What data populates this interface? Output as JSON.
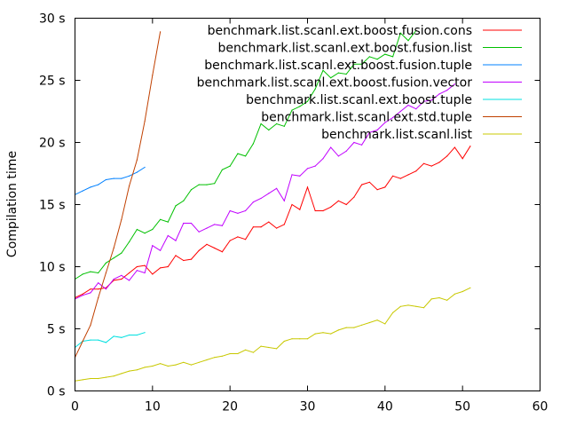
{
  "chart_data": {
    "type": "line",
    "ylabel": "Compilation time",
    "xlim": [
      0,
      60
    ],
    "ylim": [
      0,
      30
    ],
    "xticks": [
      0,
      10,
      20,
      30,
      40,
      50,
      60
    ],
    "yticks": [
      0,
      5,
      10,
      15,
      20,
      25,
      30
    ],
    "ytick_labels": [
      "0 s",
      "5 s",
      "10 s",
      "15 s",
      "20 s",
      "25 s",
      "30 s"
    ],
    "grid": false,
    "legend_position": "top-right",
    "series": [
      {
        "name": "benchmark.list.scanl.ext.boost.fusion.cons",
        "color": "#ff0000",
        "x": [
          0,
          1,
          2,
          3,
          4,
          5,
          6,
          7,
          8,
          9,
          10,
          11,
          12,
          13,
          14,
          15,
          16,
          17,
          18,
          19,
          20,
          21,
          22,
          23,
          24,
          25,
          26,
          27,
          28,
          29,
          30,
          31,
          32,
          33,
          34,
          35,
          36,
          37,
          38,
          39,
          40,
          41,
          42,
          43,
          44,
          45,
          46,
          47,
          48,
          49,
          50,
          51
        ],
        "y": [
          7.5,
          7.8,
          8.2,
          8.2,
          8.3,
          8.9,
          9.0,
          9.5,
          10.0,
          10.1,
          9.4,
          9.9,
          10.0,
          10.9,
          10.5,
          10.6,
          11.3,
          11.8,
          11.5,
          11.2,
          12.1,
          12.4,
          12.2,
          13.2,
          13.2,
          13.6,
          13.1,
          13.4,
          15.0,
          14.6,
          16.4,
          14.5,
          14.5,
          14.8,
          15.3,
          15.0,
          15.6,
          16.6,
          16.8,
          16.2,
          16.4,
          17.3,
          17.1,
          17.4,
          17.7,
          18.3,
          18.1,
          18.4,
          18.9,
          19.6,
          18.7,
          19.7
        ]
      },
      {
        "name": "benchmark.list.scanl.ext.boost.fusion.list",
        "color": "#00c000",
        "x": [
          0,
          1,
          2,
          3,
          4,
          5,
          6,
          7,
          8,
          9,
          10,
          11,
          12,
          13,
          14,
          15,
          16,
          17,
          18,
          19,
          20,
          21,
          22,
          23,
          24,
          25,
          26,
          27,
          28,
          29,
          30,
          31,
          32,
          33,
          34,
          35,
          36,
          37,
          38,
          39,
          40,
          41,
          42,
          43,
          44
        ],
        "y": [
          9.0,
          9.4,
          9.6,
          9.5,
          10.3,
          10.7,
          11.1,
          12.0,
          13.0,
          12.7,
          13.0,
          13.8,
          13.6,
          14.9,
          15.3,
          16.2,
          16.6,
          16.6,
          16.7,
          17.8,
          18.1,
          19.1,
          18.9,
          19.9,
          21.5,
          21.0,
          21.5,
          21.3,
          22.6,
          22.9,
          23.3,
          24.3,
          25.8,
          25.2,
          25.6,
          25.5,
          26.3,
          26.3,
          26.9,
          26.7,
          27.1,
          26.9,
          28.8,
          28.2,
          29.0
        ]
      },
      {
        "name": "benchmark.list.scanl.ext.boost.fusion.tuple",
        "color": "#0080ff",
        "x": [
          0,
          1,
          2,
          3,
          4,
          5,
          6,
          7,
          8,
          9
        ],
        "y": [
          15.8,
          16.1,
          16.4,
          16.6,
          17.0,
          17.1,
          17.1,
          17.3,
          17.6,
          18.0
        ]
      },
      {
        "name": "benchmark.list.scanl.ext.boost.fusion.vector",
        "color": "#c000ff",
        "x": [
          0,
          1,
          2,
          3,
          4,
          5,
          6,
          7,
          8,
          9,
          10,
          11,
          12,
          13,
          14,
          15,
          16,
          17,
          18,
          19,
          20,
          21,
          22,
          23,
          24,
          25,
          26,
          27,
          28,
          29,
          30,
          31,
          32,
          33,
          34,
          35,
          36,
          37,
          38,
          39,
          40,
          41,
          42,
          43,
          44,
          45,
          46,
          47,
          48,
          49
        ],
        "y": [
          7.4,
          7.7,
          7.9,
          8.7,
          8.2,
          9.0,
          9.3,
          8.9,
          9.7,
          9.5,
          11.7,
          11.3,
          12.5,
          12.1,
          13.5,
          13.5,
          12.8,
          13.1,
          13.4,
          13.3,
          14.5,
          14.3,
          14.5,
          15.2,
          15.5,
          15.9,
          16.3,
          15.3,
          17.4,
          17.3,
          17.9,
          18.1,
          18.7,
          19.6,
          18.9,
          19.3,
          20.0,
          19.8,
          20.8,
          21.0,
          21.6,
          22.0,
          22.5,
          23.0,
          22.7,
          23.3,
          23.4,
          23.9,
          24.2,
          24.7
        ]
      },
      {
        "name": "benchmark.list.scanl.ext.boost.tuple",
        "color": "#00e0e0",
        "x": [
          0,
          1,
          2,
          3,
          4,
          5,
          6,
          7,
          8,
          9
        ],
        "y": [
          3.5,
          4.0,
          4.1,
          4.1,
          3.9,
          4.4,
          4.3,
          4.5,
          4.5,
          4.7
        ]
      },
      {
        "name": "benchmark.list.scanl.ext.std.tuple",
        "color": "#c04000",
        "x": [
          0,
          1,
          2,
          3,
          4,
          5,
          6,
          7,
          8,
          9,
          10,
          11
        ],
        "y": [
          2.7,
          4.0,
          5.3,
          7.5,
          9.5,
          11.5,
          13.8,
          16.5,
          18.6,
          21.7,
          25.4,
          28.9
        ]
      },
      {
        "name": "benchmark.list.scanl.list",
        "color": "#c8c800",
        "x": [
          0,
          1,
          2,
          3,
          4,
          5,
          6,
          7,
          8,
          9,
          10,
          11,
          12,
          13,
          14,
          15,
          16,
          17,
          18,
          19,
          20,
          21,
          22,
          23,
          24,
          25,
          26,
          27,
          28,
          29,
          30,
          31,
          32,
          33,
          34,
          35,
          36,
          37,
          38,
          39,
          40,
          41,
          42,
          43,
          44,
          45,
          46,
          47,
          48,
          49,
          50,
          51
        ],
        "y": [
          0.8,
          0.9,
          1.0,
          1.0,
          1.1,
          1.2,
          1.4,
          1.6,
          1.7,
          1.9,
          2.0,
          2.2,
          2.0,
          2.1,
          2.3,
          2.1,
          2.3,
          2.5,
          2.7,
          2.8,
          3.0,
          3.0,
          3.3,
          3.1,
          3.6,
          3.5,
          3.4,
          4.0,
          4.2,
          4.2,
          4.2,
          4.6,
          4.7,
          4.6,
          4.9,
          5.1,
          5.1,
          5.3,
          5.5,
          5.7,
          5.4,
          6.3,
          6.8,
          6.9,
          6.8,
          6.7,
          7.4,
          7.5,
          7.3,
          7.8,
          8.0,
          8.3
        ]
      }
    ]
  }
}
